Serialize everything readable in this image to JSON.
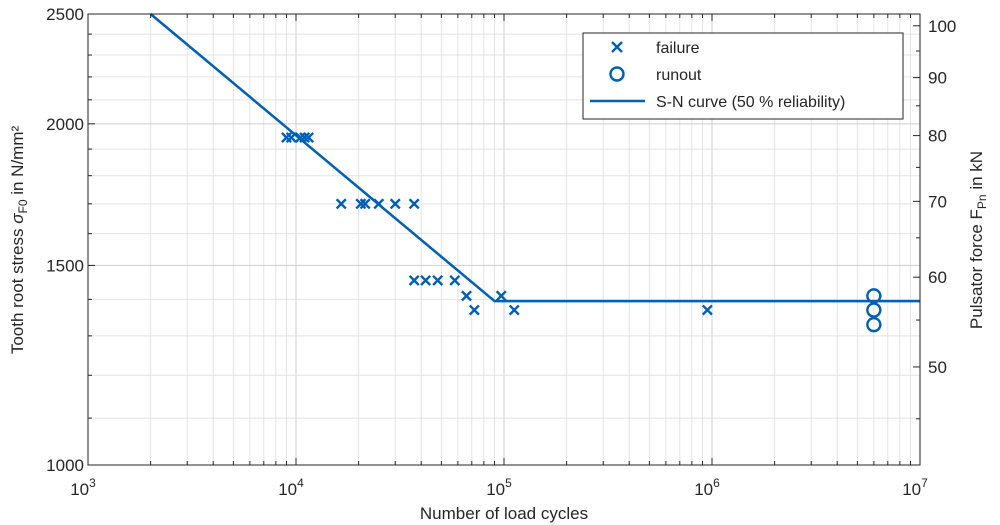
{
  "chart_data": {
    "type": "scatter",
    "xscale": "log",
    "yscale": "log",
    "xlim": [
      1000,
      10000000
    ],
    "ylim": [
      1000,
      2500
    ],
    "y2lim": [
      40.97,
      102.42
    ],
    "x_ticks": [
      {
        "value": 1000,
        "base": "10",
        "exp": "3"
      },
      {
        "value": 10000,
        "base": "10",
        "exp": "4"
      },
      {
        "value": 100000,
        "base": "10",
        "exp": "5"
      },
      {
        "value": 1000000,
        "base": "10",
        "exp": "6"
      },
      {
        "value": 10000000,
        "base": "10",
        "exp": "7"
      }
    ],
    "y_ticks": [
      {
        "value": 1000,
        "label": "1000"
      },
      {
        "value": 1500,
        "label": "1500"
      },
      {
        "value": 2000,
        "label": "2000"
      },
      {
        "value": 2500,
        "label": "2500"
      }
    ],
    "y2_ticks": [
      {
        "value": 50,
        "label": "50"
      },
      {
        "value": 60,
        "label": "60"
      },
      {
        "value": 70,
        "label": "70"
      },
      {
        "value": 80,
        "label": "80"
      },
      {
        "value": 90,
        "label": "90"
      },
      {
        "value": 100,
        "label": "100"
      }
    ],
    "xlabel": "Number of load cycles",
    "ylabel": {
      "pre": "Tooth root stress ",
      "sym": "σ",
      "sub": "F0",
      "post": " in N/mm²"
    },
    "y2label": {
      "pre": "Pulsator force F",
      "sub": "Pn",
      "post": " in kN"
    },
    "grid": true,
    "legend_position": "top-right",
    "series": [
      {
        "name": "failure",
        "marker": "x",
        "color": "#0060B6",
        "points": [
          [
            9000,
            1945
          ],
          [
            9500,
            1945
          ],
          [
            10500,
            1945
          ],
          [
            11000,
            1945
          ],
          [
            11500,
            1945
          ],
          [
            16500,
            1700
          ],
          [
            20500,
            1700
          ],
          [
            21500,
            1700
          ],
          [
            25000,
            1700
          ],
          [
            30000,
            1700
          ],
          [
            37000,
            1700
          ],
          [
            37000,
            1455
          ],
          [
            42000,
            1455
          ],
          [
            48000,
            1455
          ],
          [
            58000,
            1455
          ],
          [
            66000,
            1410
          ],
          [
            97000,
            1410
          ],
          [
            72000,
            1370
          ],
          [
            112000,
            1370
          ],
          [
            950000,
            1370
          ]
        ]
      },
      {
        "name": "runout",
        "marker": "o",
        "color": "#0060B6",
        "points": [
          [
            6000000,
            1410
          ],
          [
            6000000,
            1370
          ],
          [
            6000000,
            1330
          ]
        ]
      },
      {
        "name": "S-N curve (50 % reliability)",
        "marker": "line",
        "color": "#0060B6",
        "points": [
          [
            2000,
            2500
          ],
          [
            90000,
            1395
          ],
          [
            10000000,
            1395
          ]
        ]
      }
    ]
  }
}
